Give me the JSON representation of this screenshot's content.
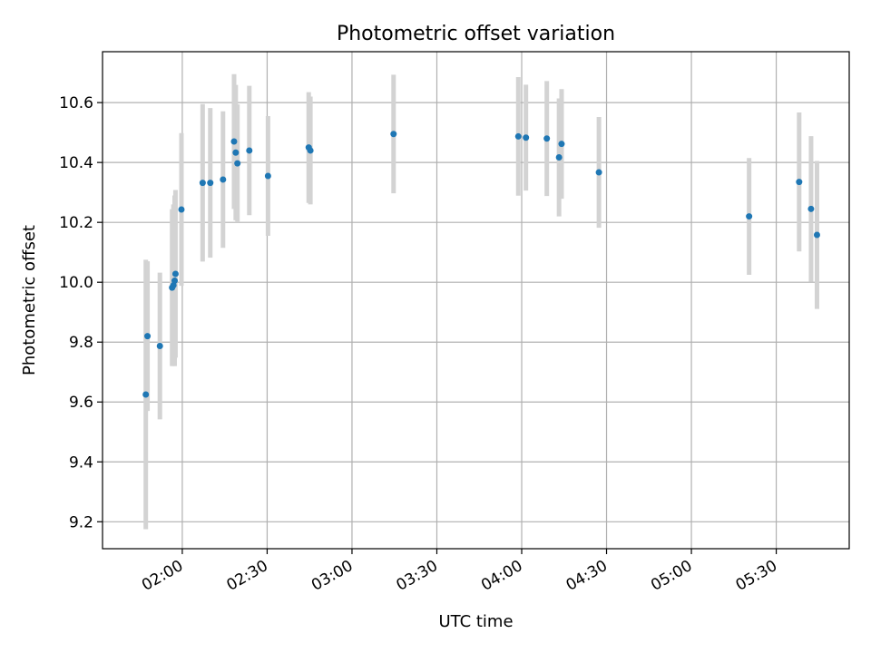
{
  "chart_data": {
    "type": "scatter",
    "title": "Photometric offset variation",
    "xlabel": "UTC time",
    "ylabel": "Photometric offset",
    "x_unit": "hours (UTC)",
    "xlim": [
      1.53,
      5.93
    ],
    "ylim": [
      9.11,
      10.77
    ],
    "x_ticks": [
      2.0,
      2.5,
      3.0,
      3.5,
      4.0,
      4.5,
      5.0,
      5.5
    ],
    "x_tick_labels": [
      "02:00",
      "02:30",
      "03:00",
      "03:30",
      "04:00",
      "04:30",
      "05:00",
      "05:30"
    ],
    "y_ticks": [
      9.2,
      9.4,
      9.6,
      9.8,
      10.0,
      10.2,
      10.4,
      10.6
    ],
    "y_tick_labels": [
      "9.2",
      "9.4",
      "9.6",
      "9.8",
      "10.0",
      "10.2",
      "10.4",
      "10.6"
    ],
    "grid": true,
    "marker_color": "#1f77b4",
    "errorbar_color": "#d3d3d3",
    "points": [
      {
        "x": 1.785,
        "y": 9.625,
        "err": 0.45
      },
      {
        "x": 1.795,
        "y": 9.82,
        "err": 0.25
      },
      {
        "x": 1.868,
        "y": 9.787,
        "err": 0.245
      },
      {
        "x": 1.94,
        "y": 9.982,
        "err": 0.262
      },
      {
        "x": 1.948,
        "y": 9.99,
        "err": 0.27
      },
      {
        "x": 1.955,
        "y": 10.005,
        "err": 0.285
      },
      {
        "x": 1.96,
        "y": 10.028,
        "err": 0.28
      },
      {
        "x": 1.995,
        "y": 10.243,
        "err": 0.255
      },
      {
        "x": 2.12,
        "y": 10.332,
        "err": 0.263
      },
      {
        "x": 2.165,
        "y": 10.332,
        "err": 0.25
      },
      {
        "x": 2.24,
        "y": 10.343,
        "err": 0.228
      },
      {
        "x": 2.305,
        "y": 10.47,
        "err": 0.225
      },
      {
        "x": 2.315,
        "y": 10.433,
        "err": 0.226
      },
      {
        "x": 2.325,
        "y": 10.397,
        "err": 0.197
      },
      {
        "x": 2.395,
        "y": 10.44,
        "err": 0.216
      },
      {
        "x": 2.505,
        "y": 10.355,
        "err": 0.2
      },
      {
        "x": 2.745,
        "y": 10.45,
        "err": 0.185
      },
      {
        "x": 2.755,
        "y": 10.44,
        "err": 0.18
      },
      {
        "x": 3.245,
        "y": 10.495,
        "err": 0.198
      },
      {
        "x": 3.98,
        "y": 10.487,
        "err": 0.198
      },
      {
        "x": 4.025,
        "y": 10.483,
        "err": 0.177
      },
      {
        "x": 4.148,
        "y": 10.48,
        "err": 0.192
      },
      {
        "x": 4.22,
        "y": 10.417,
        "err": 0.197
      },
      {
        "x": 4.235,
        "y": 10.462,
        "err": 0.183
      },
      {
        "x": 4.455,
        "y": 10.367,
        "err": 0.185
      },
      {
        "x": 5.34,
        "y": 10.22,
        "err": 0.195
      },
      {
        "x": 5.635,
        "y": 10.335,
        "err": 0.232
      },
      {
        "x": 5.705,
        "y": 10.245,
        "err": 0.243
      },
      {
        "x": 5.74,
        "y": 10.158,
        "err": 0.247
      }
    ]
  }
}
